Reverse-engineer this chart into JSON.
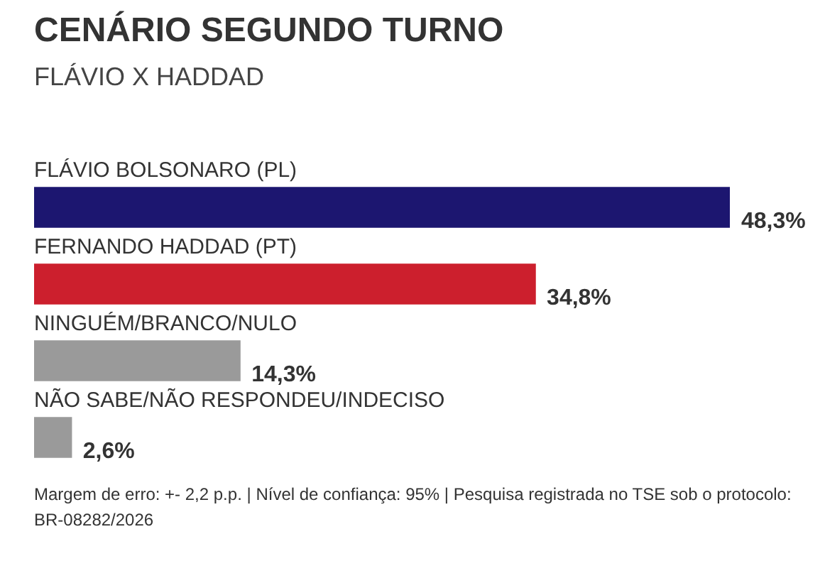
{
  "chart_data": {
    "type": "bar",
    "orientation": "horizontal",
    "title": "CENÁRIO SEGUNDO TURNO",
    "subtitle": "FLÁVIO X HADDAD",
    "categories": [
      "FLÁVIO BOLSONARO (PL)",
      "FERNANDO HADDAD (PT)",
      "NINGUÉM/BRANCO/NULO",
      "NÃO SABE/NÃO RESPONDEU/INDECISO"
    ],
    "values": [
      48.3,
      34.8,
      14.3,
      2.6
    ],
    "value_labels": [
      "48,3%",
      "34,8%",
      "14,3%",
      "2,6%"
    ],
    "colors": [
      "#1c1670",
      "#cc1f2d",
      "#9a9a9a",
      "#9a9a9a"
    ],
    "annotations": [
      "Margem de erro: +- 2,2 p.p. | Nível de confiança: 95% | Pesquisa registrada no TSE sob o protocolo: BR-08282/2026"
    ],
    "legend": false
  }
}
